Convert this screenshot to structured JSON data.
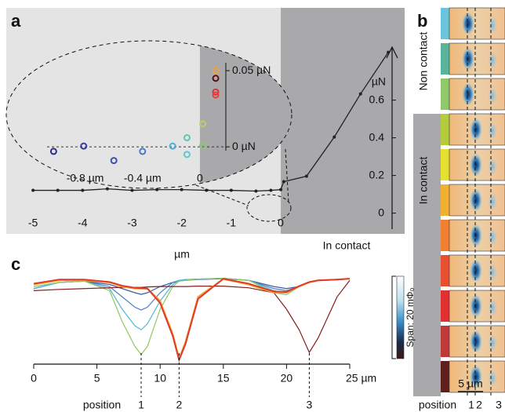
{
  "chart_data": [
    {
      "type": "line",
      "panel": "a",
      "xlabel": "µm",
      "ylabel": "µN",
      "annotation": "In contact",
      "x": [
        -5,
        -4.5,
        -4,
        -3.5,
        -3,
        -2.5,
        -2,
        -1.5,
        -1,
        -0.5,
        -0.2,
        0,
        0.06,
        0.52,
        1.08,
        1.61,
        2.17
      ],
      "values": [
        0.121,
        0.121,
        0.121,
        0.129,
        0.121,
        0.125,
        0.125,
        0.121,
        0.121,
        0.117,
        0.121,
        0.125,
        0.167,
        0.196,
        0.404,
        0.633,
        0.854
      ],
      "color": "#222222",
      "xlim": [
        -5.54,
        2.5
      ],
      "ylim": [
        -0.11,
        1.09
      ],
      "xticks": [
        -5,
        -4,
        -3,
        -2,
        -1,
        0
      ],
      "yticks": [
        0,
        0.2,
        0.4,
        0.6
      ]
    },
    {
      "type": "scatter",
      "x": [
        -1.02,
        -0.81,
        -0.6,
        -0.4,
        -0.19,
        -0.09,
        -0.09,
        0.02,
        0.02,
        0.11,
        0.11,
        0.11,
        0.11
      ],
      "values": [
        -0.003,
        0.0005,
        -0.009,
        -0.003,
        0.0005,
        0.006,
        -0.005,
        0.001,
        0.015,
        0.05,
        0.045,
        0.036,
        0.034
      ],
      "colors": [
        "#2b2b8c",
        "#3a3aa0",
        "#3f50b0",
        "#4a78c8",
        "#4ab0d8",
        "#5cc8b0",
        "#5cc8d0",
        "#8cc870",
        "#b4d26a",
        "#f0a040",
        "#5a1010",
        "#e03030",
        "#e84040"
      ],
      "xlim": [
        -1.35,
        0.64
      ],
      "ylim": [
        -0.053,
        0.0696
      ],
      "xticks": [
        {
          "value": -0.8,
          "label": "-0.8 µm"
        },
        {
          "value": -0.4,
          "label": "-0.4 µm"
        },
        0
      ],
      "yticks": [
        {
          "value": 0,
          "label": "0 µN"
        },
        {
          "value": 0.05,
          "label": "0.05 µN"
        }
      ]
    },
    {
      "type": "line",
      "panel": "c",
      "x": [
        0,
        2,
        4,
        6,
        7,
        8,
        8.5,
        9,
        10,
        11,
        11.5,
        12,
        13,
        15,
        17,
        19,
        20,
        21,
        21.8,
        22.5,
        24,
        25
      ],
      "series": [
        {
          "color": "#3b5ba8",
          "values": [
            17,
            18.5,
            18.8,
            18,
            17,
            16,
            15.6,
            16,
            17.5,
            18.5,
            18.8,
            19,
            19.2,
            19.4,
            19,
            17.5,
            17,
            17.5,
            18.5,
            19,
            19.2,
            19.4
          ]
        },
        {
          "color": "#4a80c8",
          "values": [
            17,
            18.5,
            18.8,
            17.5,
            15,
            12.5,
            11.8,
            12.5,
            16,
            18.5,
            19,
            19.2,
            19.3,
            19.5,
            19,
            17,
            16.5,
            17.5,
            18.5,
            19,
            19.2,
            19.4
          ]
        },
        {
          "color": "#50b8d8",
          "values": [
            17,
            18.5,
            18.8,
            17,
            12,
            8,
            7,
            8.5,
            14,
            18,
            19,
            19.2,
            19.3,
            19.5,
            19,
            16.5,
            16,
            17.5,
            18.5,
            19,
            19.2,
            19.4
          ]
        },
        {
          "color": "#90c860",
          "values": [
            17.5,
            18.5,
            18.8,
            16.5,
            9,
            3,
            1,
            3,
            12,
            17.5,
            18.8,
            19,
            19.3,
            19.5,
            19,
            16,
            15.5,
            17.5,
            18.5,
            19,
            19.2,
            19.4
          ]
        },
        {
          "color": "#8b1a1a",
          "values": [
            16.5,
            16.8,
            17,
            17.2,
            17.3,
            17.3,
            17.3,
            17.4,
            17.5,
            17.5,
            17.5,
            17.5,
            17.6,
            17.6,
            17.2,
            16,
            12,
            7,
            1.5,
            5,
            15,
            19
          ]
        },
        {
          "color": "#f0a030",
          "values": [
            18,
            19,
            19,
            18.5,
            17.5,
            17,
            17,
            17,
            14,
            6,
            0,
            4,
            15,
            19.3,
            18,
            16,
            16,
            17.5,
            18.5,
            19,
            19.2,
            19.4
          ]
        },
        {
          "color": "#e03a2a",
          "values": [
            18.2,
            19.2,
            19.2,
            18.6,
            17.7,
            17.2,
            17.1,
            17,
            13.5,
            5.5,
            -0.3,
            3.5,
            14.5,
            19.4,
            18.2,
            16.3,
            16.2,
            17.6,
            18.6,
            19,
            19.2,
            19.4
          ]
        }
      ],
      "xlim": [
        0,
        25
      ],
      "ylim": [
        0,
        20
      ],
      "xticks": [
        0,
        5,
        10,
        15,
        20,
        {
          "value": 25,
          "label": "25 µm"
        }
      ],
      "position_label": "position",
      "positions": [
        {
          "x": 8.5,
          "label": "1"
        },
        {
          "x": 11.5,
          "label": "2"
        },
        {
          "x": 21.8,
          "label": "3"
        }
      ],
      "colorbar_label": "Span: 20 mΦ₀"
    }
  ],
  "panel_b": {
    "label": "b",
    "regions": [
      "Non contact",
      "In contact"
    ],
    "strip_colors": [
      "#6cc4dc",
      "#5ab49c",
      "#90c86a",
      "#b4cc3c",
      "#e8e030",
      "#f0b030",
      "#f08030",
      "#e85030",
      "#e03030",
      "#c03838",
      "#602020"
    ],
    "scale_bar": "5 µm",
    "position_label": "position",
    "positions": [
      "1",
      "2",
      "3"
    ]
  }
}
